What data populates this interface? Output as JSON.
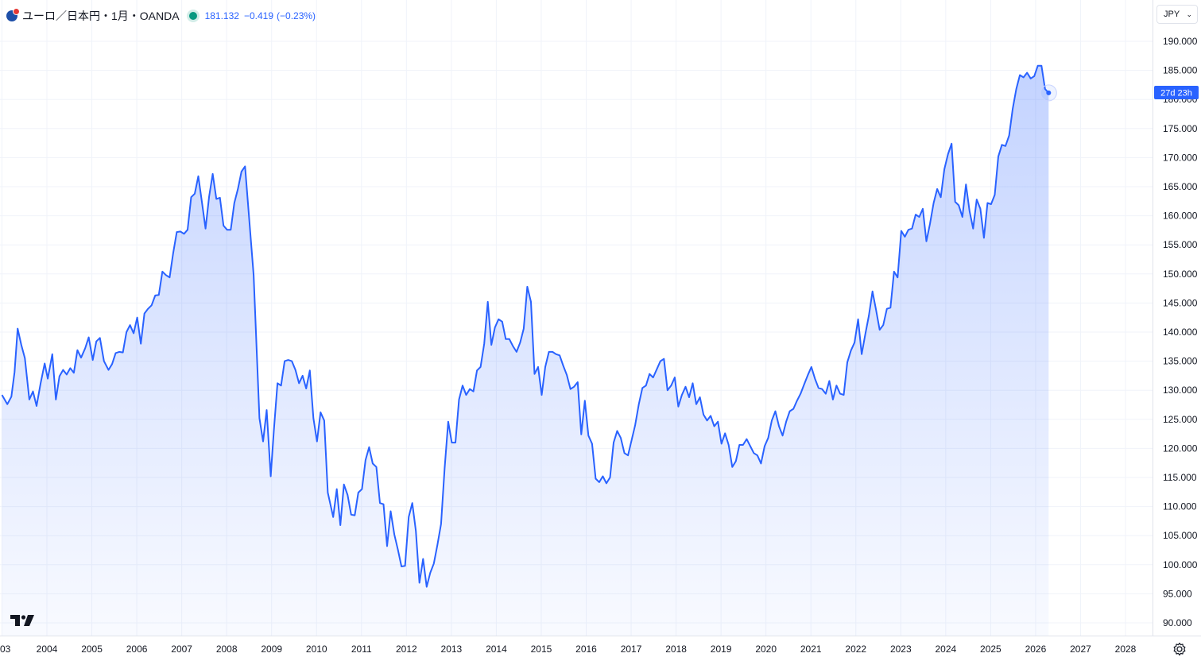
{
  "legend": {
    "symbol": "ユーロ／日本円・1月・OANDA",
    "price": "181.132",
    "change": "−0.419",
    "change_pct": "(−0.23%)"
  },
  "currency_button": {
    "label": "JPY"
  },
  "countdown_label": "27d 23h",
  "colors": {
    "line": "#2962ff",
    "fill": "#2962ff",
    "grid": "#f0f3fa",
    "text": "#131722"
  },
  "chart_data": {
    "type": "area",
    "title": "",
    "xlabel": "",
    "ylabel": "",
    "y_ticks": [
      "190.000",
      "185.000",
      "180.000",
      "175.000",
      "170.000",
      "165.000",
      "160.000",
      "155.000",
      "150.000",
      "145.000",
      "140.000",
      "135.000",
      "130.000",
      "125.000",
      "120.000",
      "115.000",
      "110.000",
      "105.000",
      "100.000",
      "95.000",
      "90.000"
    ],
    "x_ticks": [
      "03",
      "2004",
      "2005",
      "2006",
      "2007",
      "2008",
      "2009",
      "2010",
      "2011",
      "2012",
      "2013",
      "2014",
      "2015",
      "2016",
      "2017",
      "2018",
      "2019",
      "2020",
      "2021",
      "2022",
      "2023",
      "2024",
      "2025",
      "2026",
      "2027",
      "2028"
    ],
    "ylim": [
      90,
      190
    ],
    "xlim": [
      2003.0,
      2029.0
    ],
    "grid": true,
    "series": [
      {
        "points": [
          [
            2003.0,
            129.2
          ],
          [
            2003.12,
            127.6
          ],
          [
            2003.21,
            128.9
          ],
          [
            2003.28,
            133.1
          ],
          [
            2003.35,
            140.6
          ],
          [
            2003.43,
            137.8
          ],
          [
            2003.51,
            135.5
          ],
          [
            2003.61,
            128.4
          ],
          [
            2003.69,
            129.8
          ],
          [
            2003.77,
            127.3
          ],
          [
            2003.86,
            131.2
          ],
          [
            2003.95,
            134.6
          ],
          [
            2004.02,
            132.0
          ],
          [
            2004.12,
            136.2
          ],
          [
            2004.2,
            128.4
          ],
          [
            2004.28,
            132.4
          ],
          [
            2004.36,
            133.5
          ],
          [
            2004.44,
            132.7
          ],
          [
            2004.52,
            133.8
          ],
          [
            2004.6,
            133.0
          ],
          [
            2004.68,
            136.9
          ],
          [
            2004.76,
            135.6
          ],
          [
            2004.85,
            137.2
          ],
          [
            2004.93,
            139.1
          ],
          [
            2005.02,
            135.2
          ],
          [
            2005.1,
            138.4
          ],
          [
            2005.18,
            139.0
          ],
          [
            2005.27,
            135.0
          ],
          [
            2005.37,
            133.5
          ],
          [
            2005.45,
            134.5
          ],
          [
            2005.53,
            136.4
          ],
          [
            2005.61,
            136.6
          ],
          [
            2005.69,
            136.5
          ],
          [
            2005.77,
            140.0
          ],
          [
            2005.85,
            141.2
          ],
          [
            2005.93,
            139.8
          ],
          [
            2006.01,
            142.5
          ],
          [
            2006.09,
            138.0
          ],
          [
            2006.17,
            143.2
          ],
          [
            2006.25,
            144.0
          ],
          [
            2006.33,
            144.6
          ],
          [
            2006.41,
            146.3
          ],
          [
            2006.49,
            146.4
          ],
          [
            2006.57,
            150.4
          ],
          [
            2006.65,
            149.8
          ],
          [
            2006.73,
            149.4
          ],
          [
            2006.81,
            153.6
          ],
          [
            2006.89,
            157.2
          ],
          [
            2006.97,
            157.3
          ],
          [
            2007.05,
            156.9
          ],
          [
            2007.13,
            157.6
          ],
          [
            2007.21,
            163.2
          ],
          [
            2007.29,
            163.8
          ],
          [
            2007.37,
            166.8
          ],
          [
            2007.45,
            162.3
          ],
          [
            2007.53,
            157.8
          ],
          [
            2007.61,
            163.3
          ],
          [
            2007.69,
            167.2
          ],
          [
            2007.77,
            162.9
          ],
          [
            2007.85,
            163.1
          ],
          [
            2007.93,
            158.3
          ],
          [
            2008.01,
            157.6
          ],
          [
            2008.09,
            157.6
          ],
          [
            2008.17,
            162.2
          ],
          [
            2008.25,
            164.6
          ],
          [
            2008.33,
            167.6
          ],
          [
            2008.41,
            168.5
          ],
          [
            2008.6,
            149.8
          ],
          [
            2008.73,
            125.2
          ],
          [
            2008.81,
            121.2
          ],
          [
            2008.89,
            126.6
          ],
          [
            2008.98,
            115.2
          ],
          [
            2009.05,
            123.0
          ],
          [
            2009.13,
            131.2
          ],
          [
            2009.21,
            130.8
          ],
          [
            2009.29,
            135.0
          ],
          [
            2009.37,
            135.2
          ],
          [
            2009.45,
            135.0
          ],
          [
            2009.53,
            133.5
          ],
          [
            2009.61,
            131.2
          ],
          [
            2009.69,
            132.5
          ],
          [
            2009.77,
            130.3
          ],
          [
            2009.85,
            133.4
          ],
          [
            2009.93,
            125.2
          ],
          [
            2010.01,
            121.2
          ],
          [
            2010.09,
            126.2
          ],
          [
            2010.17,
            124.8
          ],
          [
            2010.25,
            112.4
          ],
          [
            2010.37,
            108.2
          ],
          [
            2010.45,
            113.0
          ],
          [
            2010.53,
            106.8
          ],
          [
            2010.61,
            113.8
          ],
          [
            2010.69,
            112.0
          ],
          [
            2010.77,
            108.6
          ],
          [
            2010.85,
            108.5
          ],
          [
            2010.93,
            112.4
          ],
          [
            2011.01,
            113.0
          ],
          [
            2011.09,
            118.0
          ],
          [
            2011.17,
            120.2
          ],
          [
            2011.25,
            117.4
          ],
          [
            2011.33,
            116.8
          ],
          [
            2011.41,
            110.6
          ],
          [
            2011.49,
            110.4
          ],
          [
            2011.57,
            103.2
          ],
          [
            2011.65,
            109.2
          ],
          [
            2011.73,
            105.2
          ],
          [
            2011.81,
            102.6
          ],
          [
            2011.89,
            99.7
          ],
          [
            2011.97,
            99.8
          ],
          [
            2012.05,
            108.2
          ],
          [
            2012.13,
            110.6
          ],
          [
            2012.21,
            105.8
          ],
          [
            2012.29,
            96.9
          ],
          [
            2012.37,
            101.0
          ],
          [
            2012.45,
            96.2
          ],
          [
            2012.53,
            98.6
          ],
          [
            2012.61,
            100.2
          ],
          [
            2012.69,
            103.4
          ],
          [
            2012.77,
            107.0
          ],
          [
            2012.85,
            116.6
          ],
          [
            2012.93,
            124.6
          ],
          [
            2013.01,
            121.0
          ],
          [
            2013.09,
            121.0
          ],
          [
            2013.17,
            128.4
          ],
          [
            2013.25,
            130.8
          ],
          [
            2013.33,
            129.2
          ],
          [
            2013.41,
            130.2
          ],
          [
            2013.49,
            129.8
          ],
          [
            2013.57,
            133.4
          ],
          [
            2013.65,
            134.0
          ],
          [
            2013.73,
            138.0
          ],
          [
            2013.81,
            145.2
          ],
          [
            2013.89,
            137.8
          ],
          [
            2013.97,
            140.8
          ],
          [
            2014.05,
            142.2
          ],
          [
            2014.13,
            141.8
          ],
          [
            2014.21,
            138.8
          ],
          [
            2014.29,
            138.8
          ],
          [
            2014.37,
            137.6
          ],
          [
            2014.45,
            136.6
          ],
          [
            2014.53,
            138.2
          ],
          [
            2014.61,
            140.6
          ],
          [
            2014.69,
            147.8
          ],
          [
            2014.77,
            145.2
          ],
          [
            2014.85,
            132.8
          ],
          [
            2014.93,
            134.0
          ],
          [
            2015.01,
            129.2
          ],
          [
            2015.09,
            134.0
          ],
          [
            2015.17,
            136.6
          ],
          [
            2015.25,
            136.6
          ],
          [
            2015.33,
            136.2
          ],
          [
            2015.41,
            136.0
          ],
          [
            2015.49,
            134.2
          ],
          [
            2015.57,
            132.6
          ],
          [
            2015.65,
            130.2
          ],
          [
            2015.73,
            130.6
          ],
          [
            2015.81,
            131.4
          ],
          [
            2015.89,
            122.4
          ],
          [
            2015.97,
            128.2
          ],
          [
            2016.05,
            122.2
          ],
          [
            2016.13,
            120.8
          ],
          [
            2016.21,
            114.8
          ],
          [
            2016.29,
            114.2
          ],
          [
            2016.37,
            115.2
          ],
          [
            2016.45,
            114.0
          ],
          [
            2016.53,
            115.0
          ],
          [
            2016.61,
            121.0
          ],
          [
            2016.69,
            123.0
          ],
          [
            2016.77,
            121.8
          ],
          [
            2016.85,
            119.2
          ],
          [
            2016.93,
            118.8
          ],
          [
            2017.01,
            121.4
          ],
          [
            2017.09,
            124.0
          ],
          [
            2017.17,
            127.6
          ],
          [
            2017.25,
            130.4
          ],
          [
            2017.33,
            130.8
          ],
          [
            2017.41,
            132.8
          ],
          [
            2017.49,
            132.2
          ],
          [
            2017.57,
            133.6
          ],
          [
            2017.65,
            135.0
          ],
          [
            2017.73,
            135.4
          ],
          [
            2017.81,
            130.0
          ],
          [
            2017.89,
            130.8
          ],
          [
            2017.97,
            132.2
          ],
          [
            2018.05,
            127.2
          ],
          [
            2018.13,
            129.2
          ],
          [
            2018.21,
            130.6
          ],
          [
            2018.29,
            128.8
          ],
          [
            2018.37,
            131.2
          ],
          [
            2018.45,
            127.6
          ],
          [
            2018.53,
            128.8
          ],
          [
            2018.61,
            125.8
          ],
          [
            2018.69,
            124.8
          ],
          [
            2018.77,
            125.6
          ],
          [
            2018.85,
            123.8
          ],
          [
            2018.93,
            124.6
          ],
          [
            2019.01,
            120.8
          ],
          [
            2019.09,
            122.6
          ],
          [
            2019.17,
            120.6
          ],
          [
            2019.25,
            116.8
          ],
          [
            2019.33,
            117.8
          ],
          [
            2019.41,
            120.6
          ],
          [
            2019.49,
            120.6
          ],
          [
            2019.57,
            121.6
          ],
          [
            2019.65,
            120.4
          ],
          [
            2019.73,
            119.2
          ],
          [
            2019.81,
            118.8
          ],
          [
            2019.89,
            117.4
          ],
          [
            2019.97,
            120.4
          ],
          [
            2020.05,
            121.8
          ],
          [
            2020.13,
            124.8
          ],
          [
            2020.21,
            126.4
          ],
          [
            2020.29,
            123.8
          ],
          [
            2020.37,
            122.2
          ],
          [
            2020.45,
            124.6
          ],
          [
            2020.53,
            126.4
          ],
          [
            2020.61,
            126.8
          ],
          [
            2020.69,
            128.2
          ],
          [
            2020.77,
            129.4
          ],
          [
            2020.85,
            131.0
          ],
          [
            2020.93,
            132.6
          ],
          [
            2021.01,
            134.0
          ],
          [
            2021.09,
            132.0
          ],
          [
            2021.17,
            130.4
          ],
          [
            2021.25,
            130.2
          ],
          [
            2021.33,
            129.4
          ],
          [
            2021.41,
            131.6
          ],
          [
            2021.49,
            128.4
          ],
          [
            2021.57,
            130.8
          ],
          [
            2021.65,
            129.4
          ],
          [
            2021.73,
            129.2
          ],
          [
            2021.81,
            134.8
          ],
          [
            2021.89,
            136.8
          ],
          [
            2021.97,
            138.2
          ],
          [
            2022.05,
            142.2
          ],
          [
            2022.13,
            136.2
          ],
          [
            2022.21,
            139.6
          ],
          [
            2022.29,
            142.8
          ],
          [
            2022.37,
            147.0
          ],
          [
            2022.45,
            143.8
          ],
          [
            2022.53,
            140.4
          ],
          [
            2022.61,
            141.2
          ],
          [
            2022.69,
            144.0
          ],
          [
            2022.77,
            144.2
          ],
          [
            2022.85,
            150.4
          ],
          [
            2022.93,
            149.4
          ],
          [
            2023.01,
            157.4
          ],
          [
            2023.09,
            156.4
          ],
          [
            2023.17,
            157.6
          ],
          [
            2023.25,
            157.8
          ],
          [
            2023.33,
            160.2
          ],
          [
            2023.41,
            159.8
          ],
          [
            2023.49,
            161.2
          ],
          [
            2023.57,
            155.6
          ],
          [
            2023.65,
            158.6
          ],
          [
            2023.73,
            162.2
          ],
          [
            2023.81,
            164.6
          ],
          [
            2023.89,
            163.2
          ],
          [
            2023.97,
            168.0
          ],
          [
            2024.05,
            170.6
          ],
          [
            2024.13,
            172.4
          ],
          [
            2024.21,
            162.4
          ],
          [
            2024.29,
            161.8
          ],
          [
            2024.37,
            159.8
          ],
          [
            2024.45,
            165.4
          ],
          [
            2024.53,
            160.8
          ],
          [
            2024.61,
            157.8
          ],
          [
            2024.69,
            162.8
          ],
          [
            2024.77,
            161.2
          ],
          [
            2024.85,
            156.2
          ],
          [
            2024.93,
            162.2
          ],
          [
            2025.01,
            162.0
          ],
          [
            2025.09,
            163.6
          ],
          [
            2025.17,
            170.2
          ],
          [
            2025.25,
            172.2
          ],
          [
            2025.33,
            172.0
          ],
          [
            2025.41,
            173.8
          ],
          [
            2025.49,
            178.4
          ],
          [
            2025.57,
            181.8
          ],
          [
            2025.65,
            184.2
          ],
          [
            2025.73,
            183.8
          ],
          [
            2025.81,
            184.6
          ],
          [
            2025.89,
            183.6
          ],
          [
            2025.97,
            184.0
          ],
          [
            2026.05,
            185.8
          ],
          [
            2026.13,
            185.8
          ],
          [
            2026.21,
            181.8
          ],
          [
            2026.29,
            181.13
          ]
        ]
      }
    ]
  }
}
